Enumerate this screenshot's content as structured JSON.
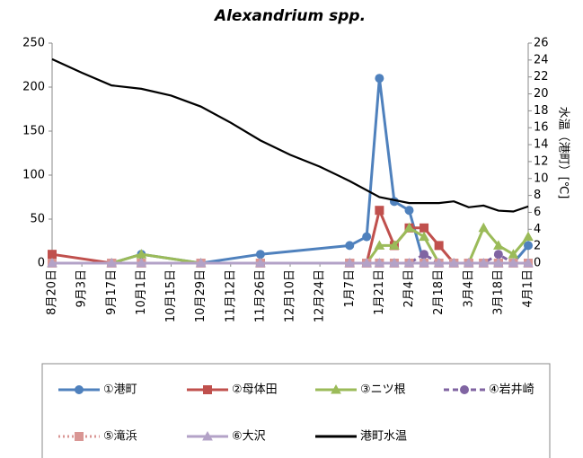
{
  "chart_data": {
    "type": "line",
    "title": "Alexandrium spp.",
    "y2_label": "水温（港町）[℃]",
    "xlim": [
      "8月20日",
      "4月1日"
    ],
    "xticks": [
      "8月20日",
      "9月3日",
      "9月17日",
      "10月1日",
      "10月15日",
      "10月29日",
      "11月12日",
      "11月26日",
      "12月10日",
      "12月24日",
      "1月7日",
      "1月21日",
      "2月4日",
      "2月18日",
      "3月4日",
      "3月18日",
      "4月1日"
    ],
    "ylim": [
      0,
      250
    ],
    "yticks": [
      0,
      50,
      100,
      150,
      200,
      250
    ],
    "y2lim": [
      0,
      26
    ],
    "y2ticks": [
      0,
      2,
      4,
      6,
      8,
      10,
      12,
      14,
      16,
      18,
      20,
      22,
      24,
      26
    ],
    "grid": false,
    "legend": "bottom",
    "series": [
      {
        "name": "①港町",
        "color": "#4f81bd",
        "marker": "circle",
        "dash": "solid",
        "x": [
          "8月20日",
          "9月17日",
          "10月1日",
          "10月29日",
          "11月26日",
          "1月7日",
          "1月15日",
          "1月21日",
          "1月28日",
          "2月4日",
          "2月11日",
          "2月18日",
          "2月25日",
          "3月4日",
          "3月11日",
          "3月18日",
          "3月25日",
          "4月1日"
        ],
        "values": [
          0,
          0,
          10,
          0,
          10,
          20,
          30,
          210,
          70,
          60,
          0,
          0,
          0,
          0,
          0,
          0,
          0,
          20
        ]
      },
      {
        "name": "②母体田",
        "color": "#c0504d",
        "marker": "square",
        "dash": "solid",
        "x": [
          "8月20日",
          "9月17日",
          "10月1日",
          "10月29日",
          "11月26日",
          "1月7日",
          "1月15日",
          "1月21日",
          "1月28日",
          "2月4日",
          "2月11日",
          "2月18日",
          "2月25日",
          "3月4日",
          "3月11日",
          "3月18日",
          "3月25日",
          "4月1日"
        ],
        "values": [
          10,
          0,
          0,
          0,
          0,
          0,
          0,
          60,
          20,
          40,
          40,
          20,
          0,
          0,
          0,
          0,
          0,
          0
        ]
      },
      {
        "name": "③ニツ根",
        "color": "#9bbb59",
        "marker": "triangle",
        "dash": "solid",
        "x": [
          "8月20日",
          "9月17日",
          "10月1日",
          "10月29日",
          "11月26日",
          "1月7日",
          "1月15日",
          "1月21日",
          "1月28日",
          "2月4日",
          "2月11日",
          "2月18日",
          "2月25日",
          "3月4日",
          "3月11日",
          "3月18日",
          "3月25日",
          "4月1日"
        ],
        "values": [
          0,
          0,
          10,
          0,
          0,
          0,
          0,
          20,
          20,
          40,
          30,
          0,
          0,
          0,
          40,
          20,
          10,
          30
        ]
      },
      {
        "name": "④岩井崎",
        "color": "#8064a2",
        "marker": "circle",
        "dash": "dash",
        "x": [
          "8月20日",
          "9月17日",
          "10月1日",
          "10月29日",
          "11月26日",
          "1月7日",
          "1月15日",
          "1月21日",
          "1月28日",
          "2月4日",
          "2月11日",
          "2月18日",
          "2月25日",
          "3月4日",
          "3月11日",
          "3月18日",
          "3月25日",
          "4月1日"
        ],
        "values": [
          0,
          0,
          0,
          0,
          0,
          0,
          0,
          0,
          0,
          0,
          10,
          0,
          0,
          0,
          0,
          10,
          0,
          0
        ]
      },
      {
        "name": "⑤滝浜",
        "color": "#d99694",
        "marker": "square",
        "dash": "dot",
        "x": [
          "8月20日",
          "9月17日",
          "10月1日",
          "10月29日",
          "11月26日",
          "1月7日",
          "1月15日",
          "1月21日",
          "1月28日",
          "2月4日",
          "2月11日",
          "2月18日",
          "2月25日",
          "3月4日",
          "3月11日",
          "3月18日",
          "3月25日",
          "4月1日"
        ],
        "values": [
          0,
          0,
          0,
          0,
          0,
          0,
          0,
          0,
          0,
          0,
          0,
          0,
          0,
          0,
          0,
          0,
          0,
          0
        ]
      },
      {
        "name": "⑥大沢",
        "color": "#b3a2c7",
        "marker": "triangle",
        "dash": "solid",
        "x": [
          "8月20日",
          "9月17日",
          "10月1日",
          "10月29日",
          "11月26日",
          "1月7日",
          "1月15日",
          "1月21日",
          "1月28日",
          "2月4日",
          "2月11日",
          "2月18日",
          "2月25日",
          "3月4日",
          "3月11日",
          "3月18日",
          "3月25日",
          "4月1日"
        ],
        "values": [
          0,
          0,
          0,
          0,
          0,
          0,
          0,
          0,
          0,
          0,
          0,
          0,
          0,
          0,
          0,
          0,
          0,
          0
        ]
      },
      {
        "name": "港町水温",
        "color": "#000000",
        "marker": "none",
        "dash": "solid",
        "axis": "y2",
        "x": [
          "8月20日",
          "9月3日",
          "9月17日",
          "10月1日",
          "10月15日",
          "10月29日",
          "11月12日",
          "11月26日",
          "12月10日",
          "12月24日",
          "1月7日",
          "1月21日",
          "2月4日",
          "2月18日",
          "2月25日",
          "3月4日",
          "3月11日",
          "3月18日",
          "3月25日",
          "4月1日"
        ],
        "values": [
          24.1,
          22.5,
          21,
          20.6,
          19.8,
          18.5,
          16.6,
          14.5,
          12.8,
          11.4,
          9.7,
          7.8,
          7.1,
          7.1,
          7.3,
          6.6,
          6.8,
          6.2,
          6.1,
          6.7
        ]
      }
    ]
  }
}
